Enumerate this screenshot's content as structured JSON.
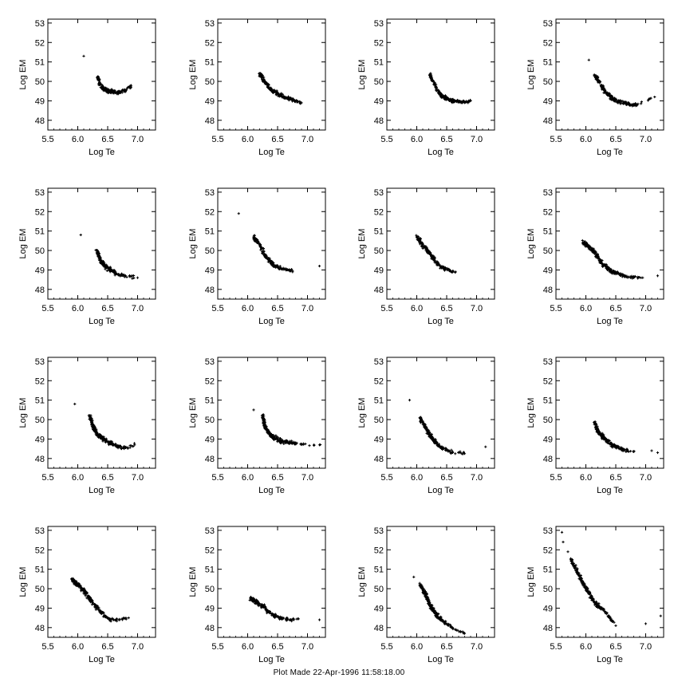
{
  "footer": {
    "text": "Plot Made 22-Apr-1996 11:58:18.00"
  },
  "chart_data": {
    "type": "scatter",
    "layout": "4x4 grid of small multiples",
    "xlabel": "Log Te",
    "ylabel": "Log EM",
    "xlim": [
      5.5,
      7.3
    ],
    "ylim": [
      47.5,
      53.2
    ],
    "xticks": [
      5.5,
      6.0,
      6.5,
      7.0
    ],
    "xtick_labels": [
      "5.5",
      "6.0",
      "6.5",
      "7.0"
    ],
    "yticks": [
      48,
      49,
      50,
      51,
      52,
      53
    ],
    "ytick_labels": [
      "48",
      "49",
      "50",
      "51",
      "52",
      "53"
    ],
    "marker": "plus",
    "marker_color": "#000000",
    "panels": [
      {
        "row": 1,
        "col": 1,
        "outliers": [
          [
            6.1,
            51.3
          ]
        ],
        "points": [
          [
            6.33,
            50.2
          ],
          [
            6.4,
            49.7
          ],
          [
            6.5,
            49.5
          ],
          [
            6.6,
            49.45
          ],
          [
            6.7,
            49.45
          ],
          [
            6.8,
            49.55
          ],
          [
            6.88,
            49.75
          ]
        ]
      },
      {
        "row": 1,
        "col": 2,
        "outliers": [],
        "points": [
          [
            6.2,
            50.4
          ],
          [
            6.3,
            49.9
          ],
          [
            6.4,
            49.55
          ],
          [
            6.5,
            49.35
          ],
          [
            6.6,
            49.2
          ],
          [
            6.7,
            49.1
          ],
          [
            6.8,
            49.0
          ],
          [
            6.9,
            48.9
          ]
        ]
      },
      {
        "row": 1,
        "col": 3,
        "outliers": [],
        "points": [
          [
            6.22,
            50.3
          ],
          [
            6.32,
            49.7
          ],
          [
            6.4,
            49.3
          ],
          [
            6.5,
            49.1
          ],
          [
            6.6,
            49.0
          ],
          [
            6.7,
            48.95
          ],
          [
            6.8,
            48.95
          ],
          [
            6.9,
            49.0
          ]
        ]
      },
      {
        "row": 1,
        "col": 4,
        "outliers": [
          [
            6.05,
            51.1
          ]
        ],
        "points": [
          [
            6.15,
            50.3
          ],
          [
            6.25,
            49.8
          ],
          [
            6.35,
            49.4
          ],
          [
            6.45,
            49.1
          ],
          [
            6.55,
            48.95
          ],
          [
            6.65,
            48.9
          ],
          [
            6.75,
            48.8
          ],
          [
            6.85,
            48.8
          ],
          [
            7.15,
            49.2
          ]
        ]
      },
      {
        "row": 2,
        "col": 1,
        "outliers": [
          [
            6.05,
            50.8
          ]
        ],
        "points": [
          [
            6.32,
            50.0
          ],
          [
            6.38,
            49.5
          ],
          [
            6.45,
            49.2
          ],
          [
            6.55,
            49.0
          ],
          [
            6.65,
            48.8
          ],
          [
            6.8,
            48.7
          ],
          [
            7.0,
            48.6
          ]
        ]
      },
      {
        "row": 2,
        "col": 2,
        "outliers": [
          [
            5.85,
            51.9
          ],
          [
            7.2,
            49.2
          ]
        ],
        "points": [
          [
            6.1,
            50.7
          ],
          [
            6.2,
            50.3
          ],
          [
            6.3,
            49.7
          ],
          [
            6.38,
            49.4
          ],
          [
            6.45,
            49.2
          ],
          [
            6.55,
            49.1
          ],
          [
            6.65,
            49.0
          ],
          [
            6.75,
            48.95
          ]
        ]
      },
      {
        "row": 2,
        "col": 3,
        "outliers": [],
        "points": [
          [
            6.0,
            50.7
          ],
          [
            6.1,
            50.3
          ],
          [
            6.2,
            49.9
          ],
          [
            6.28,
            49.6
          ],
          [
            6.35,
            49.3
          ],
          [
            6.45,
            49.1
          ],
          [
            6.55,
            48.95
          ],
          [
            6.65,
            48.9
          ]
        ]
      },
      {
        "row": 2,
        "col": 4,
        "outliers": [
          [
            7.2,
            48.7
          ]
        ],
        "points": [
          [
            5.95,
            50.4
          ],
          [
            6.05,
            50.2
          ],
          [
            6.15,
            49.9
          ],
          [
            6.25,
            49.4
          ],
          [
            6.35,
            49.1
          ],
          [
            6.45,
            48.9
          ],
          [
            6.55,
            48.8
          ],
          [
            6.65,
            48.7
          ],
          [
            6.8,
            48.6
          ],
          [
            6.95,
            48.6
          ]
        ]
      },
      {
        "row": 3,
        "col": 1,
        "outliers": [
          [
            5.95,
            50.8
          ]
        ],
        "points": [
          [
            6.2,
            50.2
          ],
          [
            6.25,
            49.7
          ],
          [
            6.32,
            49.3
          ],
          [
            6.4,
            49.05
          ],
          [
            6.5,
            48.85
          ],
          [
            6.6,
            48.7
          ],
          [
            6.7,
            48.6
          ],
          [
            6.8,
            48.55
          ],
          [
            6.95,
            48.7
          ]
        ]
      },
      {
        "row": 3,
        "col": 2,
        "outliers": [
          [
            6.1,
            50.5
          ]
        ],
        "points": [
          [
            6.25,
            50.2
          ],
          [
            6.28,
            49.7
          ],
          [
            6.35,
            49.3
          ],
          [
            6.45,
            49.05
          ],
          [
            6.55,
            48.9
          ],
          [
            6.65,
            48.85
          ],
          [
            6.75,
            48.8
          ],
          [
            6.9,
            48.75
          ],
          [
            7.2,
            48.7
          ]
        ]
      },
      {
        "row": 3,
        "col": 3,
        "outliers": [
          [
            5.88,
            51.0
          ],
          [
            7.15,
            48.6
          ]
        ],
        "points": [
          [
            6.05,
            50.1
          ],
          [
            6.15,
            49.6
          ],
          [
            6.22,
            49.2
          ],
          [
            6.28,
            48.95
          ],
          [
            6.35,
            48.7
          ],
          [
            6.45,
            48.5
          ],
          [
            6.6,
            48.3
          ],
          [
            6.8,
            48.25
          ]
        ]
      },
      {
        "row": 3,
        "col": 4,
        "outliers": [
          [
            7.1,
            48.4
          ],
          [
            7.2,
            48.3
          ]
        ],
        "points": [
          [
            6.15,
            49.8
          ],
          [
            6.2,
            49.4
          ],
          [
            6.28,
            49.1
          ],
          [
            6.35,
            48.9
          ],
          [
            6.45,
            48.7
          ],
          [
            6.55,
            48.55
          ],
          [
            6.65,
            48.45
          ],
          [
            6.8,
            48.35
          ]
        ]
      },
      {
        "row": 4,
        "col": 1,
        "outliers": [],
        "points": [
          [
            5.9,
            50.5
          ],
          [
            6.0,
            50.2
          ],
          [
            6.1,
            49.9
          ],
          [
            6.2,
            49.5
          ],
          [
            6.28,
            49.2
          ],
          [
            6.35,
            48.9
          ],
          [
            6.45,
            48.6
          ],
          [
            6.55,
            48.4
          ],
          [
            6.7,
            48.4
          ],
          [
            6.85,
            48.5
          ]
        ]
      },
      {
        "row": 4,
        "col": 2,
        "outliers": [
          [
            7.2,
            48.4
          ]
        ],
        "points": [
          [
            6.05,
            49.5
          ],
          [
            6.15,
            49.3
          ],
          [
            6.25,
            49.1
          ],
          [
            6.35,
            48.8
          ],
          [
            6.45,
            48.6
          ],
          [
            6.55,
            48.5
          ],
          [
            6.7,
            48.4
          ],
          [
            6.85,
            48.45
          ]
        ]
      },
      {
        "row": 4,
        "col": 3,
        "outliers": [
          [
            5.95,
            50.6
          ]
        ],
        "points": [
          [
            6.05,
            50.2
          ],
          [
            6.15,
            49.7
          ],
          [
            6.2,
            49.3
          ],
          [
            6.25,
            49.0
          ],
          [
            6.32,
            48.7
          ],
          [
            6.4,
            48.4
          ],
          [
            6.5,
            48.2
          ],
          [
            6.65,
            47.9
          ],
          [
            6.8,
            47.7
          ]
        ]
      },
      {
        "row": 4,
        "col": 4,
        "outliers": [
          [
            5.6,
            52.9
          ],
          [
            5.62,
            52.4
          ],
          [
            5.7,
            51.9
          ],
          [
            7.0,
            48.2
          ],
          [
            7.25,
            48.6
          ]
        ],
        "points": [
          [
            5.75,
            51.5
          ],
          [
            5.85,
            50.9
          ],
          [
            5.95,
            50.3
          ],
          [
            6.05,
            49.8
          ],
          [
            6.12,
            49.4
          ],
          [
            6.2,
            49.1
          ],
          [
            6.3,
            48.9
          ],
          [
            6.4,
            48.5
          ],
          [
            6.5,
            48.1
          ]
        ]
      }
    ]
  }
}
